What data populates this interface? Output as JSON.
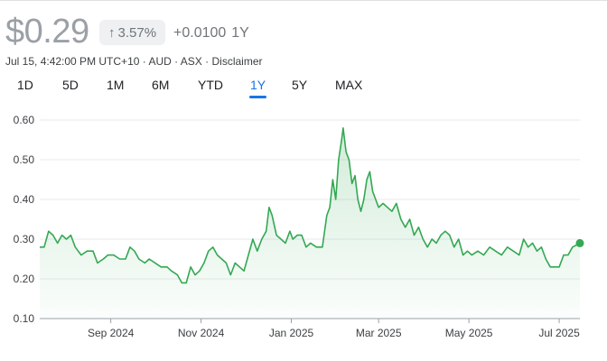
{
  "header": {
    "price": "$0.29",
    "change_percent": "3.57%",
    "change_abs": "+0.0100",
    "change_period": "1Y",
    "meta_time": "Jul 15, 4:42:00 PM UTC+10",
    "meta_currency": "AUD",
    "meta_exchange": "ASX",
    "meta_disclaimer": "Disclaimer",
    "meta_separator": " · ",
    "arrow_icon": "arrow-up-icon"
  },
  "tabs": [
    {
      "label": "1D",
      "active": false
    },
    {
      "label": "5D",
      "active": false
    },
    {
      "label": "1M",
      "active": false
    },
    {
      "label": "6M",
      "active": false
    },
    {
      "label": "YTD",
      "active": false
    },
    {
      "label": "1Y",
      "active": true
    },
    {
      "label": "5Y",
      "active": false
    },
    {
      "label": "MAX",
      "active": false
    }
  ],
  "colors": {
    "line": "#34a853",
    "fill_top": "#34a853",
    "active_tab": "#1a73e8"
  },
  "chart_data": {
    "type": "area",
    "title": "",
    "xlabel": "",
    "ylabel": "",
    "ylim": [
      0.1,
      0.6
    ],
    "yticks": [
      0.1,
      0.2,
      0.3,
      0.4,
      0.5,
      0.6
    ],
    "ytick_labels": [
      "0.10",
      "0.20",
      "0.30",
      "0.40",
      "0.50",
      "0.60"
    ],
    "xlim": [
      "2024-07-15",
      "2025-07-15"
    ],
    "xticks": [
      {
        "date": "2024-09-01",
        "label": "Sep 2024"
      },
      {
        "date": "2024-11-01",
        "label": "Nov 2024"
      },
      {
        "date": "2025-01-01",
        "label": "Jan 2025"
      },
      {
        "date": "2025-03-01",
        "label": "Mar 2025"
      },
      {
        "date": "2025-05-01",
        "label": "May 2025"
      },
      {
        "date": "2025-07-01",
        "label": "Jul 2025"
      }
    ],
    "grid": true,
    "legend": "none",
    "series": [
      {
        "values": [
          [
            "2024-07-15",
            0.28
          ],
          [
            "2024-07-18",
            0.28
          ],
          [
            "2024-07-21",
            0.32
          ],
          [
            "2024-07-24",
            0.31
          ],
          [
            "2024-07-27",
            0.29
          ],
          [
            "2024-07-30",
            0.31
          ],
          [
            "2024-08-02",
            0.3
          ],
          [
            "2024-08-05",
            0.31
          ],
          [
            "2024-08-08",
            0.28
          ],
          [
            "2024-08-12",
            0.26
          ],
          [
            "2024-08-16",
            0.27
          ],
          [
            "2024-08-20",
            0.27
          ],
          [
            "2024-08-23",
            0.24
          ],
          [
            "2024-08-27",
            0.25
          ],
          [
            "2024-08-30",
            0.26
          ],
          [
            "2024-09-03",
            0.26
          ],
          [
            "2024-09-07",
            0.25
          ],
          [
            "2024-09-11",
            0.25
          ],
          [
            "2024-09-14",
            0.28
          ],
          [
            "2024-09-17",
            0.27
          ],
          [
            "2024-09-20",
            0.25
          ],
          [
            "2024-09-24",
            0.24
          ],
          [
            "2024-09-27",
            0.25
          ],
          [
            "2024-10-01",
            0.24
          ],
          [
            "2024-10-05",
            0.23
          ],
          [
            "2024-10-09",
            0.23
          ],
          [
            "2024-10-12",
            0.22
          ],
          [
            "2024-10-16",
            0.21
          ],
          [
            "2024-10-19",
            0.19
          ],
          [
            "2024-10-22",
            0.19
          ],
          [
            "2024-10-25",
            0.23
          ],
          [
            "2024-10-28",
            0.21
          ],
          [
            "2024-10-31",
            0.22
          ],
          [
            "2024-11-03",
            0.24
          ],
          [
            "2024-11-06",
            0.27
          ],
          [
            "2024-11-09",
            0.28
          ],
          [
            "2024-11-12",
            0.26
          ],
          [
            "2024-11-15",
            0.25
          ],
          [
            "2024-11-18",
            0.24
          ],
          [
            "2024-11-21",
            0.21
          ],
          [
            "2024-11-24",
            0.24
          ],
          [
            "2024-11-27",
            0.23
          ],
          [
            "2024-11-30",
            0.22
          ],
          [
            "2024-12-03",
            0.26
          ],
          [
            "2024-12-06",
            0.3
          ],
          [
            "2024-12-09",
            0.27
          ],
          [
            "2024-12-12",
            0.3
          ],
          [
            "2024-12-15",
            0.32
          ],
          [
            "2024-12-17",
            0.38
          ],
          [
            "2024-12-19",
            0.36
          ],
          [
            "2024-12-22",
            0.31
          ],
          [
            "2024-12-25",
            0.3
          ],
          [
            "2024-12-28",
            0.29
          ],
          [
            "2024-12-31",
            0.32
          ],
          [
            "2025-01-02",
            0.3
          ],
          [
            "2025-01-05",
            0.31
          ],
          [
            "2025-01-08",
            0.31
          ],
          [
            "2025-01-11",
            0.28
          ],
          [
            "2025-01-14",
            0.29
          ],
          [
            "2025-01-18",
            0.28
          ],
          [
            "2025-01-22",
            0.28
          ],
          [
            "2025-01-25",
            0.36
          ],
          [
            "2025-01-27",
            0.38
          ],
          [
            "2025-01-29",
            0.45
          ],
          [
            "2025-01-31",
            0.4
          ],
          [
            "2025-02-02",
            0.5
          ],
          [
            "2025-02-04",
            0.55
          ],
          [
            "2025-02-05",
            0.58
          ],
          [
            "2025-02-07",
            0.52
          ],
          [
            "2025-02-09",
            0.5
          ],
          [
            "2025-02-11",
            0.44
          ],
          [
            "2025-02-13",
            0.46
          ],
          [
            "2025-02-15",
            0.4
          ],
          [
            "2025-02-17",
            0.37
          ],
          [
            "2025-02-19",
            0.4
          ],
          [
            "2025-02-21",
            0.45
          ],
          [
            "2025-02-23",
            0.47
          ],
          [
            "2025-02-25",
            0.42
          ],
          [
            "2025-02-27",
            0.4
          ],
          [
            "2025-03-01",
            0.38
          ],
          [
            "2025-03-04",
            0.39
          ],
          [
            "2025-03-07",
            0.38
          ],
          [
            "2025-03-10",
            0.37
          ],
          [
            "2025-03-13",
            0.39
          ],
          [
            "2025-03-16",
            0.35
          ],
          [
            "2025-03-19",
            0.33
          ],
          [
            "2025-03-22",
            0.35
          ],
          [
            "2025-03-25",
            0.31
          ],
          [
            "2025-03-28",
            0.33
          ],
          [
            "2025-03-31",
            0.3
          ],
          [
            "2025-04-03",
            0.28
          ],
          [
            "2025-04-06",
            0.3
          ],
          [
            "2025-04-09",
            0.29
          ],
          [
            "2025-04-12",
            0.31
          ],
          [
            "2025-04-15",
            0.32
          ],
          [
            "2025-04-18",
            0.31
          ],
          [
            "2025-04-21",
            0.28
          ],
          [
            "2025-04-24",
            0.3
          ],
          [
            "2025-04-27",
            0.26
          ],
          [
            "2025-04-30",
            0.27
          ],
          [
            "2025-05-03",
            0.26
          ],
          [
            "2025-05-07",
            0.27
          ],
          [
            "2025-05-11",
            0.26
          ],
          [
            "2025-05-15",
            0.28
          ],
          [
            "2025-05-19",
            0.27
          ],
          [
            "2025-05-23",
            0.26
          ],
          [
            "2025-05-27",
            0.28
          ],
          [
            "2025-05-31",
            0.27
          ],
          [
            "2025-06-04",
            0.26
          ],
          [
            "2025-06-07",
            0.3
          ],
          [
            "2025-06-10",
            0.28
          ],
          [
            "2025-06-13",
            0.29
          ],
          [
            "2025-06-16",
            0.27
          ],
          [
            "2025-06-19",
            0.28
          ],
          [
            "2025-06-22",
            0.25
          ],
          [
            "2025-06-25",
            0.23
          ],
          [
            "2025-06-28",
            0.23
          ],
          [
            "2025-07-01",
            0.23
          ],
          [
            "2025-07-04",
            0.26
          ],
          [
            "2025-07-07",
            0.26
          ],
          [
            "2025-07-10",
            0.28
          ],
          [
            "2025-07-15",
            0.29
          ]
        ]
      }
    ]
  }
}
